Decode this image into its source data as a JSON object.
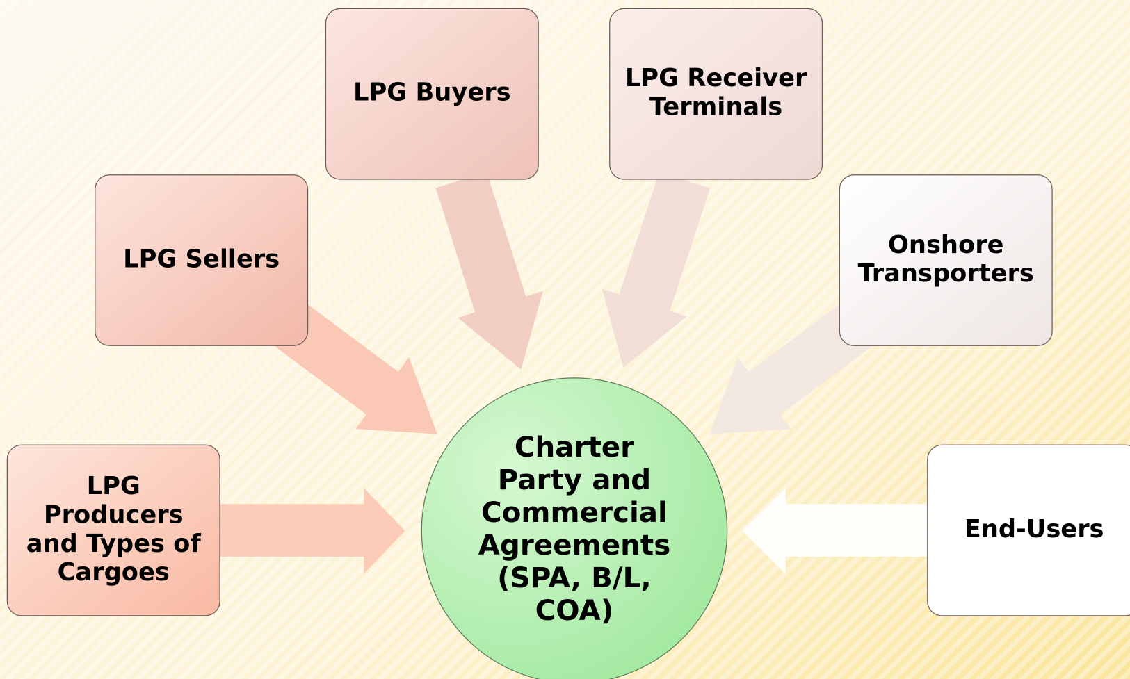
{
  "center": {
    "label": [
      "Charter",
      "Party and",
      "Commercial",
      "Agreements",
      "(SPA, B/L,",
      "COA)"
    ]
  },
  "nodes": [
    {
      "label": [
        "LPG",
        "Producers",
        "and Types of",
        "Cargoes"
      ]
    },
    {
      "label": [
        "LPG Sellers"
      ]
    },
    {
      "label": [
        "LPG Buyers"
      ]
    },
    {
      "label": [
        "LPG Receiver",
        "Terminals"
      ]
    },
    {
      "label": [
        "Onshore",
        "Transporters"
      ]
    },
    {
      "label": [
        "End-Users"
      ]
    }
  ]
}
